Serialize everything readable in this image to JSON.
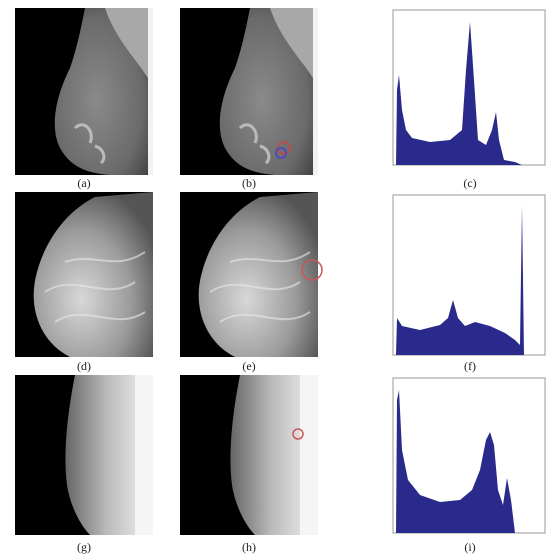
{
  "figure": {
    "captions": [
      "(a)",
      "(b)",
      "(c)",
      "(d)",
      "(e)",
      "(f)",
      "(g)",
      "(h)",
      "(i)"
    ]
  }
}
